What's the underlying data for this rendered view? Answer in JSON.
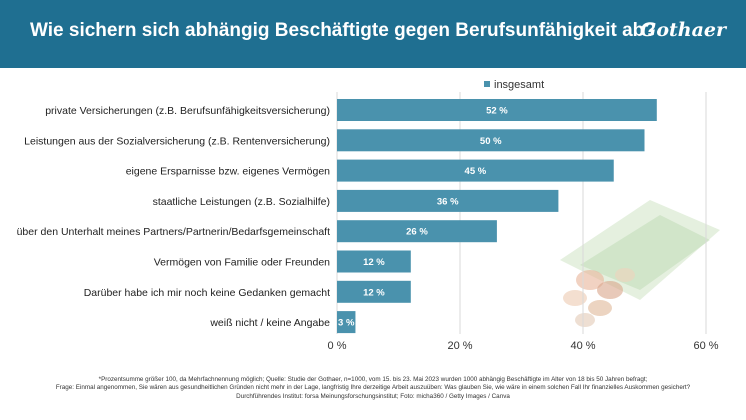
{
  "header": {
    "title": "Wie sichern sich abhängig Beschäftigte gegen Berufsunfähigkeit ab?",
    "brand": "Gothaer"
  },
  "colors": {
    "header_bg": "#1f6f91",
    "bar": "#4a92ad",
    "grid": "#d9d9d9"
  },
  "chart_data": {
    "type": "bar",
    "orientation": "horizontal",
    "categories": [
      "private Versicherungen (z.B. Berufsunfähigkeitsversicherung)",
      "Leistungen aus der Sozialversicherung (z.B. Rentenversicherung)",
      "eigene Ersparnisse bzw. eigenes Vermögen",
      "staatliche Leistungen (z.B. Sozialhilfe)",
      "über den Unterhalt meines Partners/Partnerin/Bedarfsgemeinschaft",
      "Vermögen von Familie oder Freunden",
      "Darüber habe ich mir noch keine Gedanken gemacht",
      "weiß nicht / keine Angabe"
    ],
    "series": [
      {
        "name": "insgesamt",
        "values": [
          52,
          50,
          45,
          36,
          26,
          12,
          12,
          3
        ],
        "labels": [
          "52 %",
          "50 %",
          "45 %",
          "36 %",
          "26 %",
          "12 %",
          "12 %",
          "3 %"
        ]
      }
    ],
    "xlim": [
      0,
      60
    ],
    "xticks": [
      0,
      20,
      40,
      60
    ],
    "xtick_labels": [
      "0 %",
      "20 %",
      "40 %",
      "60 %"
    ],
    "grid": true,
    "legend": "top"
  },
  "footer": {
    "line1": "*Prozentsumme größer 100, da Mehrfachnennung möglich; Quelle: Studie der Gothaer, n=1000, vom 15. bis 23. Mai 2023 wurden 1000 abhängig Beschäftigte im Alter von 18 bis 50 Jahren befragt;",
    "line2": "Frage: Einmal angenommen, Sie wären aus gesundheitlichen Gründen nicht mehr in der Lage, langfristig Ihre derzeitige Arbeit auszuüben: Was glauben Sie, wie wäre in einem solchen Fall Ihr finanzielles Auskommen gesichert?",
    "line3": "Durchführendes Institut: forsa Meinungsforschungsinstitut; Foto: micha360 / Getty Images / Canva"
  }
}
